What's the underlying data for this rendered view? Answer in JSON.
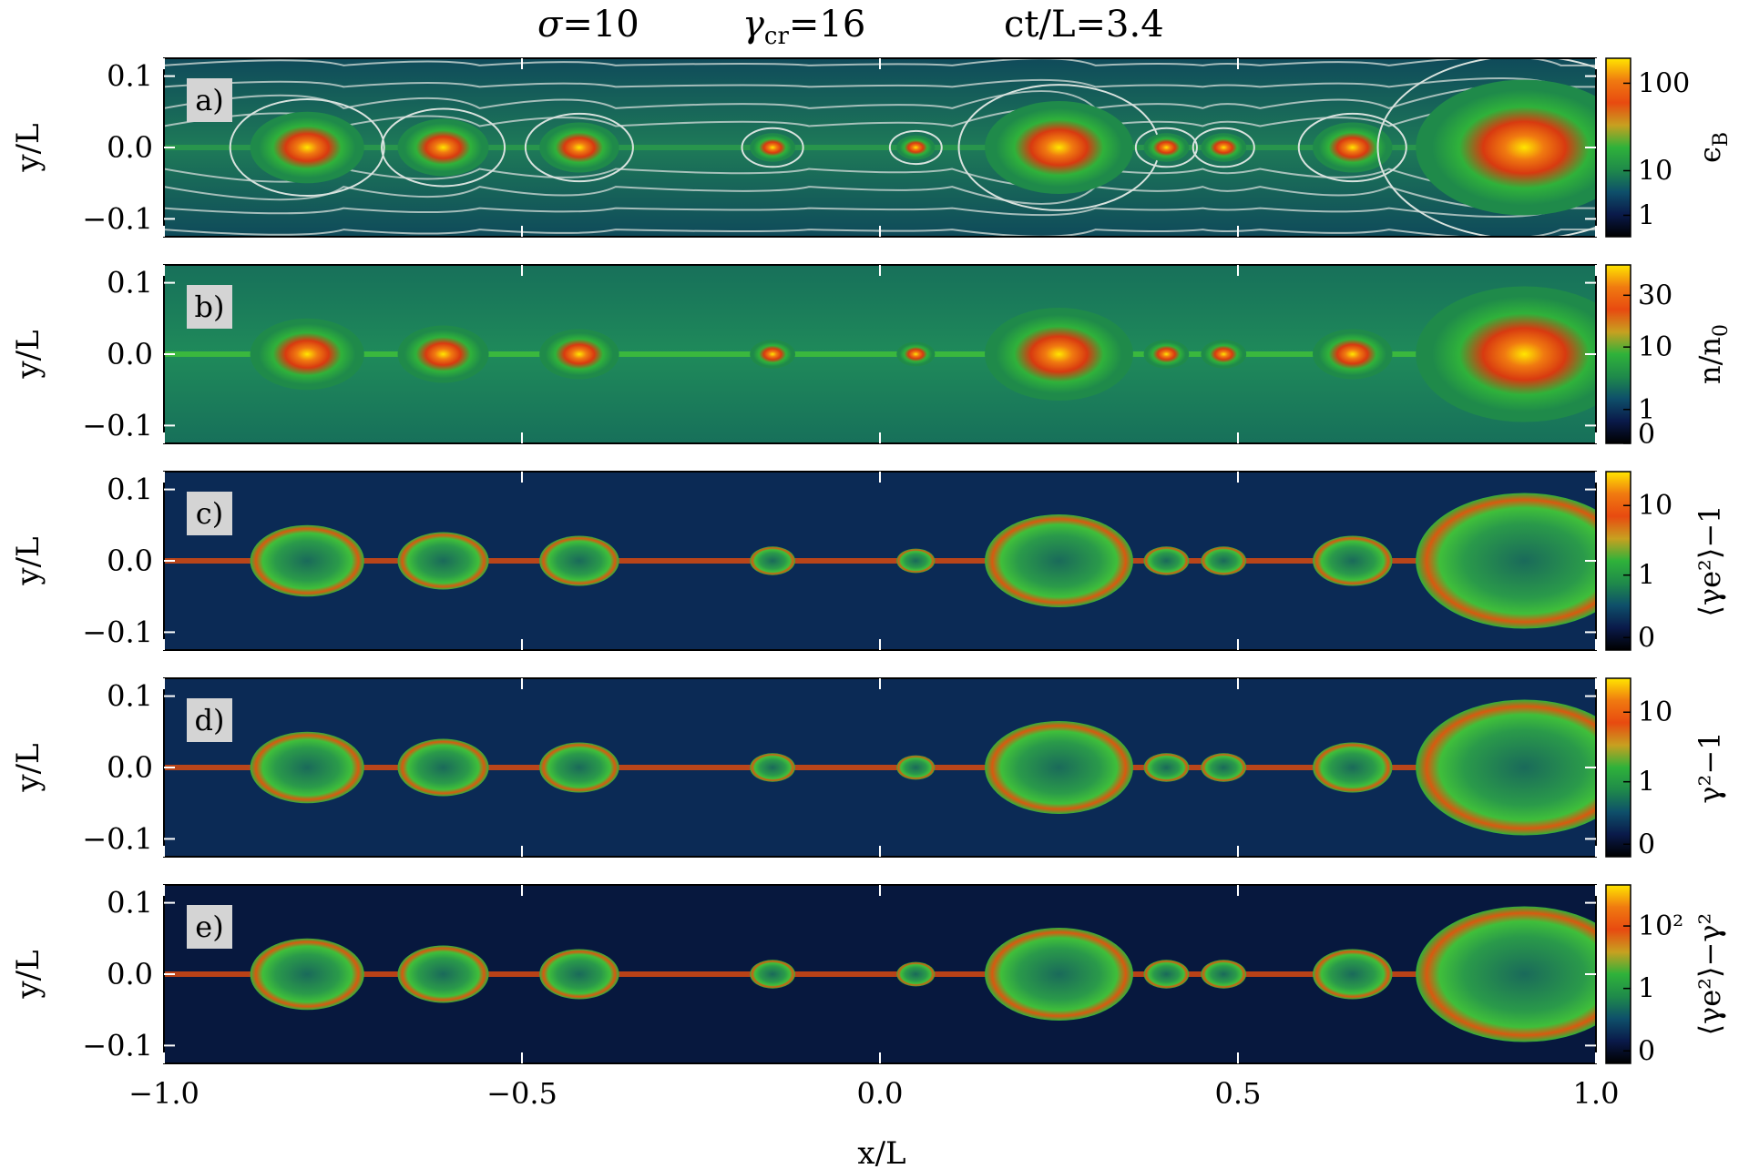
{
  "figure": {
    "title_parts": [
      "σ=10",
      "γcr=16",
      "ct/L=3.4"
    ],
    "title_sigma_symbol": "σ",
    "title_sigma_value": "=10",
    "title_gamma_symbol": "γ",
    "title_gamma_sub": "cr",
    "title_gamma_value": "=16",
    "title_time": "ct/L=3.4",
    "xlabel": "x/L",
    "colormap": [
      "#000000",
      "#0a1a4a",
      "#0e4f6a",
      "#1f8a4a",
      "#2fb23a",
      "#c8a020",
      "#e84a10",
      "#f07a10",
      "#ffe600"
    ]
  },
  "chart_data": {
    "type": "heatmap",
    "x_range": [
      -1.0,
      1.0
    ],
    "y_range": [
      -0.125,
      0.125
    ],
    "x_ticks": [
      "−1.0",
      "−0.5",
      "0.0",
      "0.5",
      "1.0"
    ],
    "x_tick_values": [
      -1.0,
      -0.5,
      0.0,
      0.5,
      1.0
    ],
    "y_ticks": [
      "0.1",
      "0.0",
      "−0.1"
    ],
    "y_tick_values": [
      0.1,
      0.0,
      -0.1
    ],
    "ylabel": "y/L",
    "xlabel": "x/L",
    "plasmoids": [
      {
        "x": -0.8,
        "r": 0.045
      },
      {
        "x": -0.61,
        "r": 0.035
      },
      {
        "x": -0.42,
        "r": 0.03
      },
      {
        "x": -0.15,
        "r": 0.015
      },
      {
        "x": 0.05,
        "r": 0.012
      },
      {
        "x": 0.25,
        "r": 0.06
      },
      {
        "x": 0.4,
        "r": 0.015
      },
      {
        "x": 0.48,
        "r": 0.015
      },
      {
        "x": 0.66,
        "r": 0.03
      },
      {
        "x": 0.9,
        "r": 0.09
      }
    ],
    "panels": [
      {
        "letter": "a)",
        "quantity": "ϵ_B",
        "cbar_label": "ϵ",
        "cbar_label_sub": "B",
        "cbar_ticks": [
          "100",
          "10",
          "1"
        ],
        "cbar_tick_fracs": [
          0.86,
          0.37,
          0.12
        ]
      },
      {
        "letter": "b)",
        "quantity": "n/n0",
        "cbar_label": "n/n",
        "cbar_label_sub": "0",
        "cbar_ticks": [
          "30",
          "10",
          "1",
          "0"
        ],
        "cbar_tick_fracs": [
          0.83,
          0.54,
          0.19,
          0.0
        ]
      },
      {
        "letter": "c)",
        "quantity": "⟨γe²⟩−1",
        "cbar_label": "⟨γe²⟩−1",
        "cbar_label_sub": "",
        "cbar_ticks": [
          "10",
          "1",
          "0"
        ],
        "cbar_tick_fracs": [
          0.81,
          0.42,
          0.07
        ]
      },
      {
        "letter": "d)",
        "quantity": "γ²−1",
        "cbar_label": "γ²−1",
        "cbar_label_sub": "",
        "cbar_ticks": [
          "10",
          "1",
          "0"
        ],
        "cbar_tick_fracs": [
          0.81,
          0.42,
          0.07
        ]
      },
      {
        "letter": "e)",
        "quantity": "⟨γe²⟩−γ²",
        "cbar_label": "⟨γe²⟩−γ²",
        "cbar_label_sub": "",
        "cbar_ticks": [
          "10²",
          "1",
          "0"
        ],
        "cbar_tick_fracs": [
          0.77,
          0.42,
          0.07
        ]
      }
    ]
  }
}
